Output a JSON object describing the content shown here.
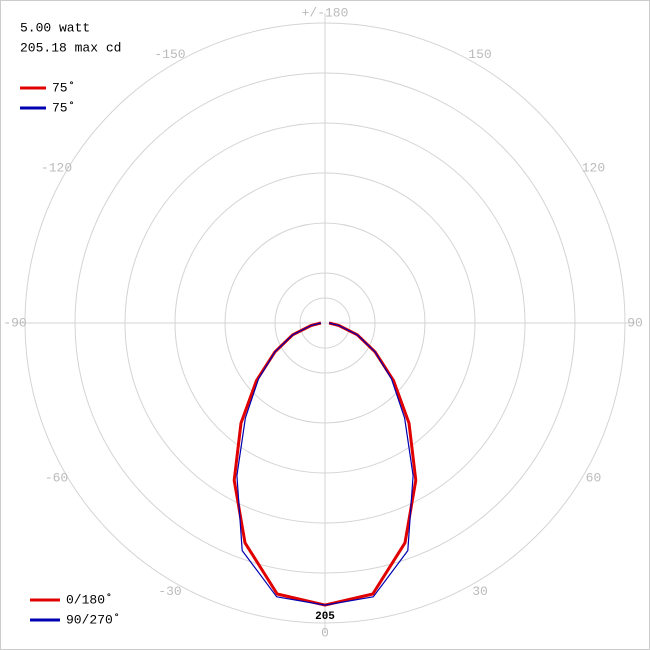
{
  "chart_data": {
    "type": "polar",
    "info": [
      "5.00 watt",
      "205.18 max cd"
    ],
    "top_legend": [
      {
        "label": "75˚",
        "color": "#e00000"
      },
      {
        "label": "75˚",
        "color": "#0000b0"
      }
    ],
    "angles": [
      -90,
      -80,
      -70,
      -60,
      -50,
      -40,
      -30,
      -20,
      -10,
      0,
      10,
      20,
      30,
      40,
      50,
      60,
      70,
      80,
      90
    ],
    "series": [
      {
        "name": "0/180˚",
        "color": "#e00000",
        "values": [
          3,
          10,
          25,
          42,
          65,
          95,
          132,
          170,
          200,
          205,
          200,
          170,
          132,
          95,
          65,
          42,
          25,
          10,
          3
        ]
      },
      {
        "name": "90/270˚",
        "color": "#0000b0",
        "values": [
          3,
          10,
          25,
          42,
          63,
          90,
          128,
          176,
          202,
          205,
          202,
          176,
          128,
          90,
          63,
          42,
          25,
          10,
          3
        ]
      }
    ],
    "rlim": [
      0,
      218
    ],
    "angle_ticks": [
      {
        "value": 180,
        "label": "+/-180"
      },
      150,
      120,
      90,
      60,
      30,
      0,
      -30,
      -60,
      -90,
      -120,
      -150
    ],
    "max_label": 205
  }
}
